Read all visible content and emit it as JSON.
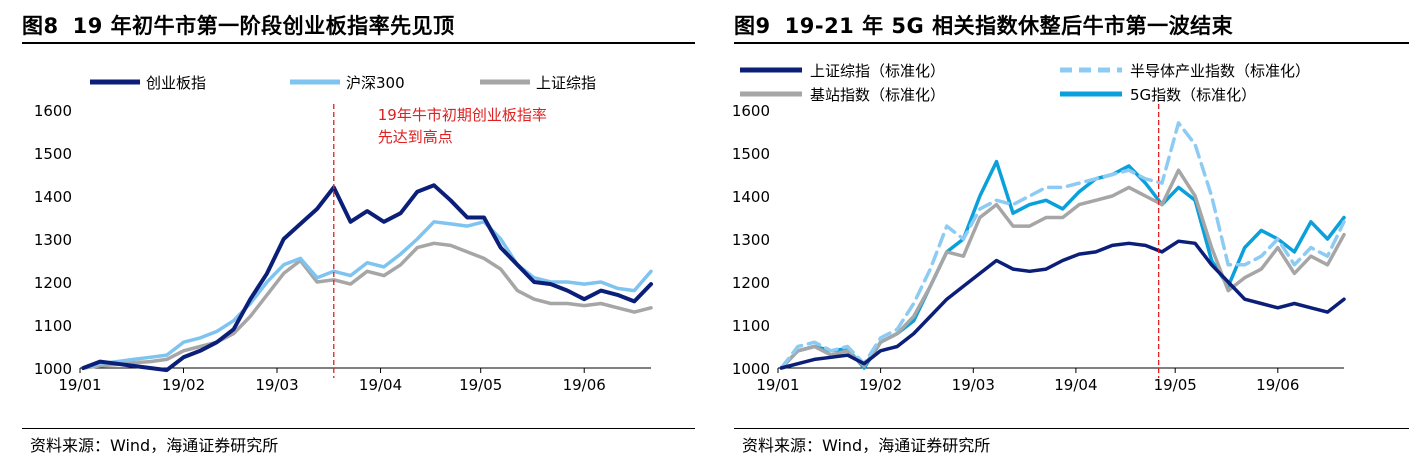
{
  "charts": [
    {
      "figure_no": "图8",
      "title": "19 年初牛市第一阶段创业板指率先见顶",
      "source": "资料来源：Wind，海通证券研究所",
      "annotation": "19年牛市初期创业板指率\n先达到高点",
      "chart_data": {
        "type": "line",
        "title": "19 年初牛市第一阶段创业板指率先见顶",
        "xlabel": "",
        "ylabel": "",
        "x_ticks": [
          "19/01",
          "19/02",
          "19/03",
          "19/04",
          "19/05",
          "19/06"
        ],
        "x": [
          "2019-01-02",
          "2019-01-07",
          "2019-01-12",
          "2019-01-17",
          "2019-01-22",
          "2019-01-27",
          "2019-02-01",
          "2019-02-06",
          "2019-02-11",
          "2019-02-16",
          "2019-02-21",
          "2019-02-26",
          "2019-03-03",
          "2019-03-08",
          "2019-03-13",
          "2019-03-18",
          "2019-03-23",
          "2019-03-28",
          "2019-04-02",
          "2019-04-07",
          "2019-04-12",
          "2019-04-17",
          "2019-04-22",
          "2019-04-27",
          "2019-05-02",
          "2019-05-07",
          "2019-05-12",
          "2019-05-17",
          "2019-05-22",
          "2019-05-27",
          "2019-06-01",
          "2019-06-06",
          "2019-06-11",
          "2019-06-16",
          "2019-06-21"
        ],
        "ylim": [
          1000,
          1600
        ],
        "y_ticks": [
          1000,
          1100,
          1200,
          1300,
          1400,
          1500,
          1600
        ],
        "series": [
          {
            "name": "创业板指",
            "color": "#0b1f78",
            "values": [
              1000,
              1015,
              1010,
              1005,
              1000,
              995,
              1025,
              1040,
              1060,
              1090,
              1160,
              1220,
              1300,
              1335,
              1370,
              1420,
              1340,
              1365,
              1340,
              1360,
              1410,
              1425,
              1390,
              1350,
              1350,
              1280,
              1240,
              1200,
              1195,
              1180,
              1160,
              1180,
              1170,
              1155,
              1195
            ]
          },
          {
            "name": "沪深300",
            "color": "#7fc4f0",
            "values": [
              1000,
              1010,
              1015,
              1020,
              1025,
              1030,
              1060,
              1070,
              1085,
              1110,
              1150,
              1200,
              1240,
              1255,
              1210,
              1225,
              1215,
              1245,
              1235,
              1265,
              1300,
              1340,
              1335,
              1330,
              1340,
              1300,
              1240,
              1210,
              1200,
              1200,
              1195,
              1200,
              1185,
              1180,
              1225
            ]
          },
          {
            "name": "上证综指",
            "color": "#a6a6a6",
            "values": [
              1000,
              1005,
              1008,
              1012,
              1015,
              1020,
              1040,
              1050,
              1060,
              1080,
              1120,
              1170,
              1220,
              1250,
              1200,
              1205,
              1195,
              1225,
              1215,
              1240,
              1280,
              1290,
              1285,
              1270,
              1255,
              1230,
              1180,
              1160,
              1150,
              1150,
              1145,
              1150,
              1140,
              1130,
              1140
            ]
          }
        ],
        "event_date": "2019-03-18",
        "grid": false,
        "legend": "top-left"
      }
    },
    {
      "figure_no": "图9",
      "title": "19-21 年 5G 相关指数休整后牛市第一波结束",
      "source": "资料来源：Wind，海通证券研究所",
      "chart_data": {
        "type": "line",
        "title": "19-21 年 5G 相关指数休整后牛市第一波结束",
        "xlabel": "",
        "ylabel": "",
        "x_ticks": [
          "19/01",
          "19/02",
          "19/03",
          "19/04",
          "19/05",
          "19/06"
        ],
        "x": [
          "2019-01-02",
          "2019-01-07",
          "2019-01-12",
          "2019-01-17",
          "2019-01-22",
          "2019-01-27",
          "2019-02-01",
          "2019-02-06",
          "2019-02-11",
          "2019-02-16",
          "2019-02-21",
          "2019-02-26",
          "2019-03-03",
          "2019-03-08",
          "2019-03-13",
          "2019-03-18",
          "2019-03-23",
          "2019-03-28",
          "2019-04-02",
          "2019-04-07",
          "2019-04-12",
          "2019-04-17",
          "2019-04-22",
          "2019-04-27",
          "2019-05-02",
          "2019-05-07",
          "2019-05-12",
          "2019-05-17",
          "2019-05-22",
          "2019-05-27",
          "2019-06-01",
          "2019-06-06",
          "2019-06-11",
          "2019-06-16",
          "2019-06-21"
        ],
        "ylim": [
          1000,
          1600
        ],
        "y_ticks": [
          1000,
          1100,
          1200,
          1300,
          1400,
          1500,
          1600
        ],
        "series": [
          {
            "name": "上证综指（标准化）",
            "color": "#0b1f78",
            "dash": false,
            "values": [
              1000,
              1010,
              1020,
              1025,
              1030,
              1010,
              1040,
              1050,
              1080,
              1120,
              1160,
              1190,
              1220,
              1250,
              1230,
              1225,
              1230,
              1250,
              1265,
              1270,
              1285,
              1290,
              1285,
              1270,
              1295,
              1290,
              1240,
              1200,
              1160,
              1150,
              1140,
              1150,
              1140,
              1130,
              1160
            ]
          },
          {
            "name": "半导体产业指数（标准化）",
            "color": "#8ecbf3",
            "dash": true,
            "values": [
              1000,
              1050,
              1060,
              1040,
              1050,
              1010,
              1070,
              1090,
              1150,
              1230,
              1330,
              1300,
              1370,
              1390,
              1380,
              1400,
              1420,
              1420,
              1430,
              1440,
              1450,
              1460,
              1440,
              1430,
              1570,
              1520,
              1400,
              1240,
              1240,
              1260,
              1300,
              1240,
              1280,
              1260,
              1340
            ]
          },
          {
            "name": "基站指数（标准化）",
            "color": "#a6a6a6",
            "dash": false,
            "values": [
              1000,
              1040,
              1050,
              1030,
              1040,
              1005,
              1060,
              1080,
              1120,
              1190,
              1270,
              1260,
              1350,
              1380,
              1330,
              1330,
              1350,
              1350,
              1380,
              1390,
              1400,
              1420,
              1400,
              1380,
              1460,
              1400,
              1280,
              1180,
              1210,
              1230,
              1280,
              1220,
              1260,
              1240,
              1310
            ]
          },
          {
            "name": "5G指数（标准化）",
            "color": "#0aa0dc",
            "dash": false,
            "values": [
              1000,
              1040,
              1050,
              1040,
              1045,
              1000,
              1060,
              1080,
              1110,
              1190,
              1270,
              1300,
              1400,
              1480,
              1360,
              1380,
              1390,
              1370,
              1410,
              1440,
              1450,
              1470,
              1430,
              1380,
              1420,
              1390,
              1250,
              1190,
              1280,
              1320,
              1300,
              1270,
              1340,
              1300,
              1350
            ]
          }
        ],
        "event_date": "2019-04-26",
        "grid": false,
        "legend": "top"
      }
    }
  ]
}
